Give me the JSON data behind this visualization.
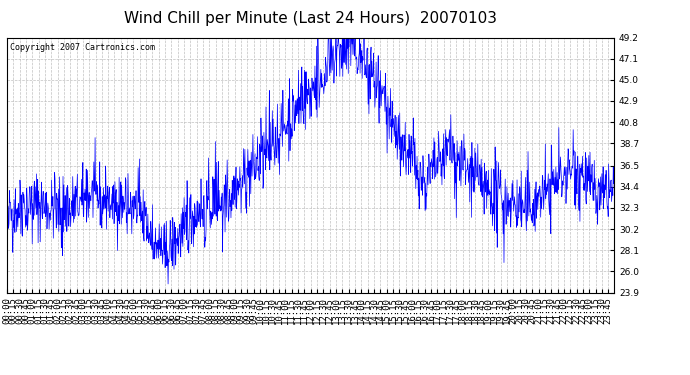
{
  "title": "Wind Chill per Minute (Last 24 Hours)  20070103",
  "copyright_text": "Copyright 2007 Cartronics.com",
  "line_color": "#0000FF",
  "background_color": "#FFFFFF",
  "grid_color": "#C0C0C0",
  "ylim": [
    23.9,
    49.2
  ],
  "yticks": [
    23.9,
    26.0,
    28.1,
    30.2,
    32.3,
    34.4,
    36.5,
    38.7,
    40.8,
    42.9,
    45.0,
    47.1,
    49.2
  ],
  "xtick_interval": 15,
  "title_fontsize": 11,
  "tick_label_fontsize": 6.5,
  "copyright_fontsize": 6
}
